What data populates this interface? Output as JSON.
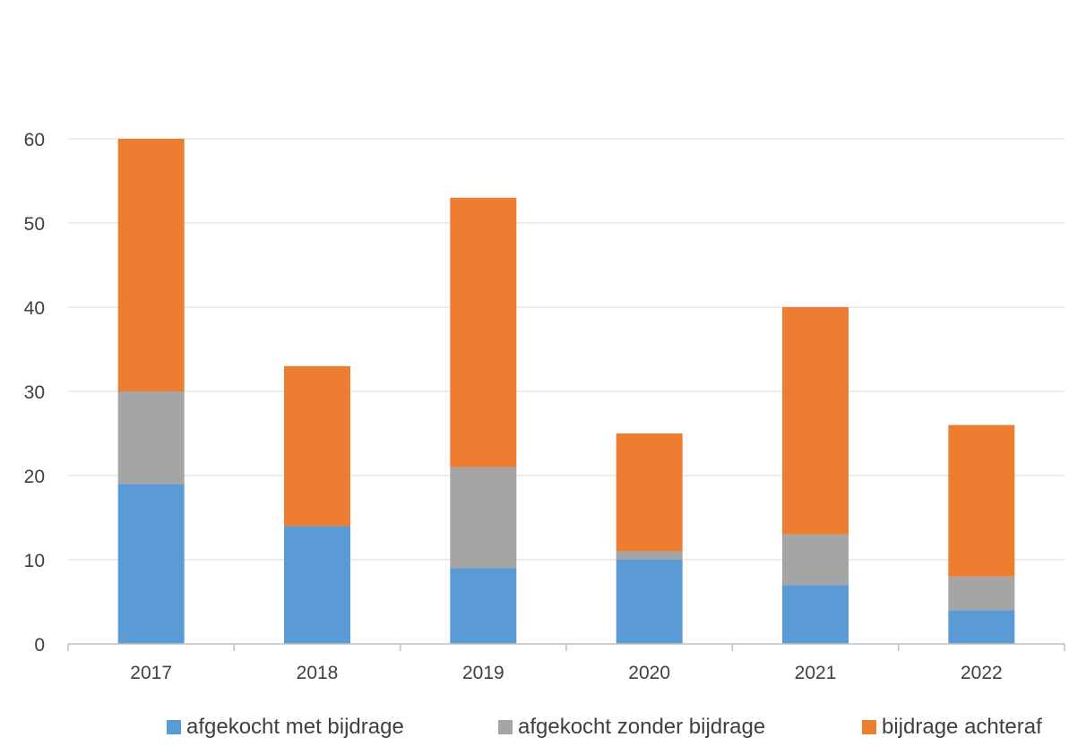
{
  "chart_data": {
    "type": "bar",
    "stacked": true,
    "title": "",
    "xlabel": "",
    "ylabel": "",
    "categories": [
      "2017",
      "2018",
      "2019",
      "2020",
      "2021",
      "2022"
    ],
    "series": [
      {
        "name": "afgekocht met bijdrage",
        "color": "#5b9bd5",
        "values": [
          19,
          14,
          9,
          10,
          7,
          4
        ]
      },
      {
        "name": "afgekocht zonder bijdrage",
        "color": "#a5a5a5",
        "values": [
          11,
          0,
          12,
          1,
          6,
          4
        ]
      },
      {
        "name": "bijdrage achteraf",
        "color": "#ed7d31",
        "values": [
          30,
          19,
          32,
          14,
          27,
          18
        ]
      }
    ],
    "ylim": [
      0,
      60
    ],
    "yticks": [
      "0",
      "10",
      "20",
      "30",
      "40",
      "50",
      "60"
    ],
    "grid": true,
    "legend_position": "bottom"
  }
}
